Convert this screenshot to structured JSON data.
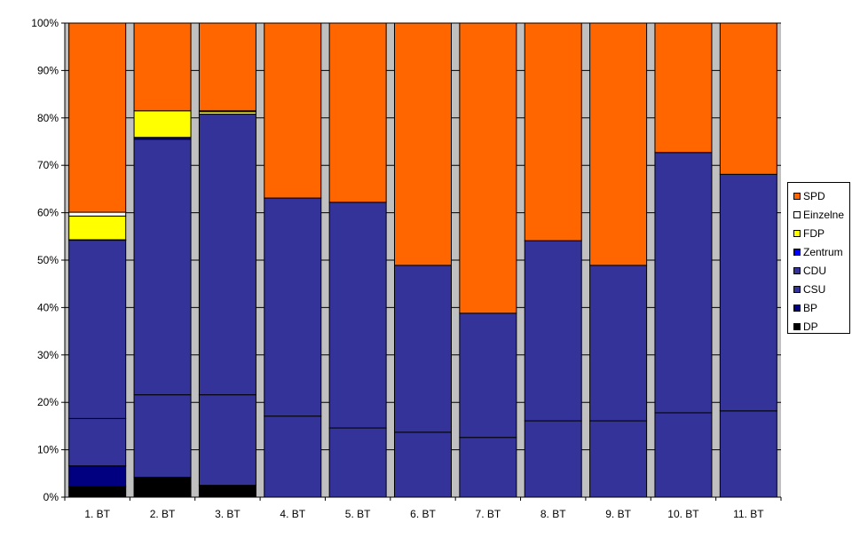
{
  "chart_data": {
    "type": "bar",
    "stacked": "percent",
    "categories": [
      "1. BT",
      "2. BT",
      "3. BT",
      "4. BT",
      "5. BT",
      "6. BT",
      "7. BT",
      "8. BT",
      "9. BT",
      "10. BT",
      "11. BT"
    ],
    "series": [
      {
        "name": "DP",
        "color": "#000000",
        "values": [
          2.2,
          4.2,
          2.5,
          0,
          0,
          0,
          0,
          0,
          0,
          0,
          0
        ]
      },
      {
        "name": "BP",
        "color": "#000080",
        "values": [
          4.4,
          0,
          0,
          0,
          0,
          0,
          0,
          0,
          0,
          0,
          0
        ]
      },
      {
        "name": "CSU",
        "color": "#333399",
        "values": [
          10.0,
          17.4,
          19.1,
          17.1,
          14.6,
          13.7,
          12.6,
          16.1,
          16.1,
          17.8,
          18.2
        ]
      },
      {
        "name": "CDU",
        "color": "#333399",
        "values": [
          37.6,
          53.9,
          59.2,
          46.0,
          47.6,
          35.2,
          26.2,
          38.0,
          32.8,
          54.9,
          49.9
        ]
      },
      {
        "name": "Zentrum",
        "color": "#0000ff",
        "values": [
          0.1,
          0.4,
          0,
          0,
          0,
          0,
          0,
          0,
          0,
          0,
          0
        ]
      },
      {
        "name": "FDP",
        "color": "#ffff00",
        "values": [
          5.0,
          5.6,
          0.5,
          0,
          0,
          0,
          0,
          0,
          0,
          0,
          0
        ]
      },
      {
        "name": "Einzelne",
        "color": "#ffffff",
        "values": [
          0.8,
          0,
          0.2,
          0,
          0,
          0,
          0,
          0,
          0,
          0,
          0
        ]
      },
      {
        "name": "SPD",
        "color": "#ff6600",
        "values": [
          39.9,
          18.5,
          18.5,
          36.9,
          37.8,
          51.1,
          61.2,
          45.9,
          51.1,
          27.3,
          31.9
        ]
      }
    ],
    "legend_order": [
      "SPD",
      "Einzelne",
      "FDP",
      "Zentrum",
      "CDU",
      "CSU",
      "BP",
      "DP"
    ],
    "yticks": [
      "0%",
      "10%",
      "20%",
      "30%",
      "40%",
      "50%",
      "60%",
      "70%",
      "80%",
      "90%",
      "100%"
    ],
    "ylim": [
      0,
      100
    ],
    "plot_background": "#c0c0c0",
    "legend_position": "right"
  }
}
